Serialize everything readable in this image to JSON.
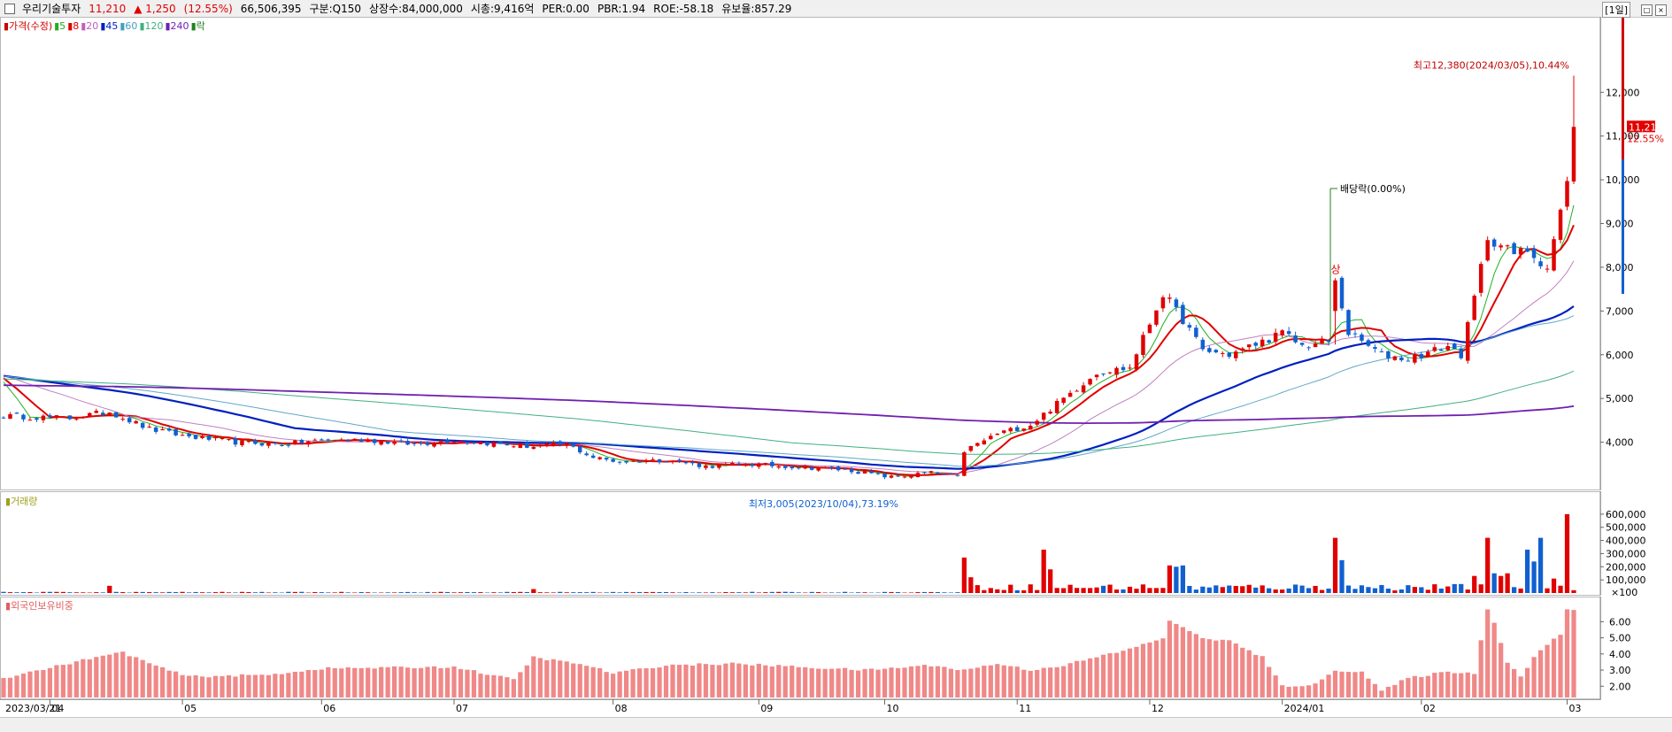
{
  "header": {
    "stock_name": "우리기술투자",
    "price": "11,210",
    "change": "▲ 1,250",
    "change_pct": "(12.55%)",
    "volume": "66,506,395",
    "segment": "구분:Q150",
    "shares": "상장수:84,000,000",
    "market_cap": "시총:9,416억",
    "per": "PER:0.00",
    "pbr": "PBR:1.94",
    "roe": "ROE:-58.18",
    "float_ratio": "유보율:857.29",
    "period": "[1일]"
  },
  "price_panel": {
    "legend": [
      {
        "text": "가격(수정)",
        "color": "#cc0000"
      },
      {
        "text": "5",
        "color": "#20b020"
      },
      {
        "text": "8",
        "color": "#e00000"
      },
      {
        "text": "20",
        "color": "#c060c0"
      },
      {
        "text": "45",
        "color": "#0020c0"
      },
      {
        "text": "60",
        "color": "#40a0c0"
      },
      {
        "text": "120",
        "color": "#40b080"
      },
      {
        "text": "240",
        "color": "#7020b0"
      },
      {
        "text": "락",
        "color": "#208020"
      }
    ],
    "high_label": "최고12,380(2024/03/05),10.44%",
    "low_label": "최저3,005(2023/10/04),73.19%",
    "dividend_label": "배당락(0.00%)",
    "limit_up_label": "상",
    "current_price_tag": "11,210",
    "current_pct_tag": "12.55%"
  },
  "volume_panel": {
    "legend": "거래량"
  },
  "foreign_panel": {
    "legend": "외국인보유비중"
  },
  "chart_data": [
    {
      "type": "candlestick",
      "title": "",
      "y_ticks": [
        4000,
        5000,
        6000,
        7000,
        8000,
        9000,
        10000,
        11000,
        12000
      ],
      "y_tick_labels": [
        "4,000",
        "5,000",
        "6,000",
        "7,000",
        "8,000",
        "9,000",
        "10,000",
        "11,000",
        "12,000"
      ],
      "ylim": [
        3000,
        13200
      ],
      "x_start_label": "2023/03/21",
      "x_month_labels": [
        "04",
        "05",
        "06",
        "07",
        "08",
        "09",
        "10",
        "11",
        "12",
        "2024/01",
        "02",
        "03"
      ],
      "month_start_index": [
        7,
        27,
        48,
        68,
        92,
        114,
        133,
        153,
        173,
        193,
        214,
        236
      ],
      "close_anchors": [
        [
          0,
          4600
        ],
        [
          10,
          4550
        ],
        [
          16,
          4700
        ],
        [
          22,
          4300
        ],
        [
          27,
          4150
        ],
        [
          35,
          4000
        ],
        [
          42,
          3950
        ],
        [
          48,
          4050
        ],
        [
          55,
          4050
        ],
        [
          62,
          3950
        ],
        [
          68,
          4050
        ],
        [
          75,
          3950
        ],
        [
          80,
          3900
        ],
        [
          85,
          3950
        ],
        [
          89,
          3650
        ],
        [
          93,
          3550
        ],
        [
          100,
          3600
        ],
        [
          106,
          3450
        ],
        [
          112,
          3500
        ],
        [
          118,
          3450
        ],
        [
          124,
          3400
        ],
        [
          128,
          3350
        ],
        [
          134,
          3200
        ],
        [
          140,
          3300
        ],
        [
          144,
          3200
        ],
        [
          145,
          3800
        ],
        [
          150,
          4200
        ],
        [
          155,
          4400
        ],
        [
          160,
          5000
        ],
        [
          165,
          5600
        ],
        [
          170,
          5700
        ],
        [
          175,
          7400
        ],
        [
          178,
          6800
        ],
        [
          181,
          6100
        ],
        [
          185,
          6000
        ],
        [
          190,
          6300
        ],
        [
          193,
          6500
        ],
        [
          196,
          6200
        ],
        [
          200,
          6300
        ],
        [
          201,
          7700
        ],
        [
          203,
          6500
        ],
        [
          208,
          6000
        ],
        [
          212,
          5900
        ],
        [
          218,
          6200
        ],
        [
          220,
          6000
        ],
        [
          222,
          7300
        ],
        [
          224,
          8700
        ],
        [
          228,
          8300
        ],
        [
          230,
          8400
        ],
        [
          233,
          8000
        ],
        [
          236,
          9900
        ],
        [
          237,
          11210
        ]
      ],
      "ma_periods": [
        5,
        8,
        20,
        45,
        60,
        120,
        240
      ],
      "annotations": [
        {
          "text": "최고12,380(2024/03/05),10.44%",
          "value": 12380
        },
        {
          "text": "최저3,005(2023/10/04),73.19%",
          "value": 3005
        }
      ]
    },
    {
      "type": "bar",
      "title": "",
      "y_ticks": [
        100000,
        200000,
        300000,
        400000,
        500000,
        600000
      ],
      "y_tick_labels": [
        "100,000",
        "200,000",
        "300,000",
        "400,000",
        "500,000",
        "600,000"
      ],
      "ylim": [
        0,
        680000
      ],
      "unit_label": "×100",
      "spikes": [
        [
          16,
          55000
        ],
        [
          80,
          30000
        ],
        [
          145,
          270000
        ],
        [
          146,
          120000
        ],
        [
          147,
          60000
        ],
        [
          157,
          330000
        ],
        [
          158,
          180000
        ],
        [
          176,
          210000
        ],
        [
          177,
          200000
        ],
        [
          178,
          210000
        ],
        [
          201,
          420000
        ],
        [
          202,
          250000
        ],
        [
          222,
          130000
        ],
        [
          224,
          420000
        ],
        [
          225,
          150000
        ],
        [
          226,
          130000
        ],
        [
          227,
          150000
        ],
        [
          230,
          330000
        ],
        [
          231,
          240000
        ],
        [
          232,
          420000
        ],
        [
          234,
          110000
        ],
        [
          236,
          600000
        ]
      ]
    },
    {
      "type": "bar",
      "title": "",
      "y_ticks": [
        2,
        3,
        4,
        5,
        6
      ],
      "y_tick_labels": [
        "2.00",
        "3.00",
        "4.00",
        "5.00",
        "6.00"
      ],
      "ylim": [
        1.3,
        6.9
      ],
      "anchors": [
        [
          0,
          2.5
        ],
        [
          14,
          3.8
        ],
        [
          18,
          4.1
        ],
        [
          24,
          3.1
        ],
        [
          28,
          2.6
        ],
        [
          40,
          2.7
        ],
        [
          48,
          3.1
        ],
        [
          68,
          3.2
        ],
        [
          77,
          2.4
        ],
        [
          80,
          3.8
        ],
        [
          88,
          3.3
        ],
        [
          92,
          2.8
        ],
        [
          100,
          3.3
        ],
        [
          110,
          3.4
        ],
        [
          120,
          3.2
        ],
        [
          130,
          3.0
        ],
        [
          140,
          3.3
        ],
        [
          145,
          3.0
        ],
        [
          150,
          3.4
        ],
        [
          155,
          3.0
        ],
        [
          160,
          3.3
        ],
        [
          165,
          3.8
        ],
        [
          170,
          4.3
        ],
        [
          175,
          5.0
        ],
        [
          176,
          6.1
        ],
        [
          178,
          5.6
        ],
        [
          181,
          5.0
        ],
        [
          185,
          4.8
        ],
        [
          190,
          3.8
        ],
        [
          193,
          2.0
        ],
        [
          198,
          2.1
        ],
        [
          201,
          3.0
        ],
        [
          205,
          2.9
        ],
        [
          208,
          1.7
        ],
        [
          212,
          2.5
        ],
        [
          218,
          2.9
        ],
        [
          222,
          2.8
        ],
        [
          224,
          6.8
        ],
        [
          225,
          6.0
        ],
        [
          227,
          3.5
        ],
        [
          229,
          2.6
        ],
        [
          231,
          3.8
        ],
        [
          233,
          4.6
        ],
        [
          235,
          5.2
        ],
        [
          236,
          6.7
        ],
        [
          237,
          6.7
        ]
      ]
    }
  ]
}
